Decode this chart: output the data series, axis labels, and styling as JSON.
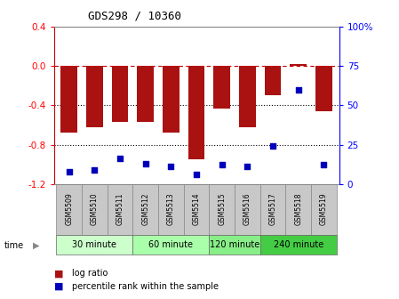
{
  "title": "GDS298 / 10360",
  "samples": [
    "GSM5509",
    "GSM5510",
    "GSM5511",
    "GSM5512",
    "GSM5513",
    "GSM5514",
    "GSM5515",
    "GSM5516",
    "GSM5517",
    "GSM5518",
    "GSM5519"
  ],
  "log_ratio": [
    -0.68,
    -0.62,
    -0.57,
    -0.57,
    -0.68,
    -0.95,
    -0.43,
    -0.62,
    -0.3,
    0.02,
    -0.46
  ],
  "percentile_rank": [
    8,
    9,
    16,
    13,
    11,
    6,
    12,
    11,
    24,
    60,
    12
  ],
  "groups": [
    {
      "label": "30 minute",
      "start": 0,
      "end": 3,
      "color": "#ccffcc"
    },
    {
      "label": "60 minute",
      "start": 3,
      "end": 6,
      "color": "#aaffaa"
    },
    {
      "label": "120 minute",
      "start": 6,
      "end": 8,
      "color": "#88ee88"
    },
    {
      "label": "240 minute",
      "start": 8,
      "end": 11,
      "color": "#44cc44"
    }
  ],
  "bar_color": "#aa1111",
  "dot_color": "#0000bb",
  "ylim_left": [
    -1.2,
    0.4
  ],
  "ylim_right": [
    0,
    100
  ],
  "yticks_left": [
    -1.2,
    -0.8,
    -0.4,
    0.0,
    0.4
  ],
  "yticks_right": [
    0,
    25,
    50,
    75,
    100
  ],
  "hline_y": 0.0,
  "dotted_lines": [
    -0.4,
    -0.8
  ],
  "background_color": "#ffffff",
  "sample_bg": "#c8c8c8",
  "sample_border": "#888888"
}
